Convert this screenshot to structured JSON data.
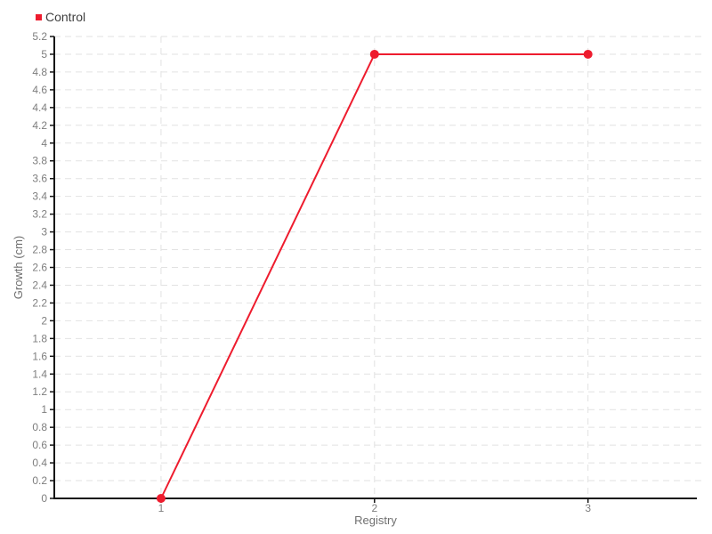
{
  "legend": {
    "items": [
      {
        "label": "Control",
        "color": "#ee1c2e"
      }
    ]
  },
  "chart_data": {
    "type": "line",
    "title": "",
    "x": [
      1,
      2,
      3
    ],
    "series": [
      {
        "name": "Control",
        "color": "#ee1c2e",
        "marker_color": "#ee1c2e",
        "values": [
          0,
          5,
          5
        ]
      }
    ],
    "xlabel": "Registry",
    "ylabel": "Growth (cm)",
    "xticks": [
      1,
      2,
      3
    ],
    "xtick_labels": [
      "1",
      "2",
      "3"
    ],
    "xlim": [
      0.5,
      3.51
    ],
    "ylim": [
      0,
      5.2
    ],
    "ytick_step": 0.2,
    "grid": "dashed horizontal and vertical",
    "legend_position": "top-left",
    "colors": {
      "grid": "#e2e2e2",
      "axis": "#141414",
      "tick_label": "#7e7e7e",
      "axis_title": "#6f6f6f",
      "legend_text": "#3f3f3f",
      "background": "#ffffff"
    }
  }
}
